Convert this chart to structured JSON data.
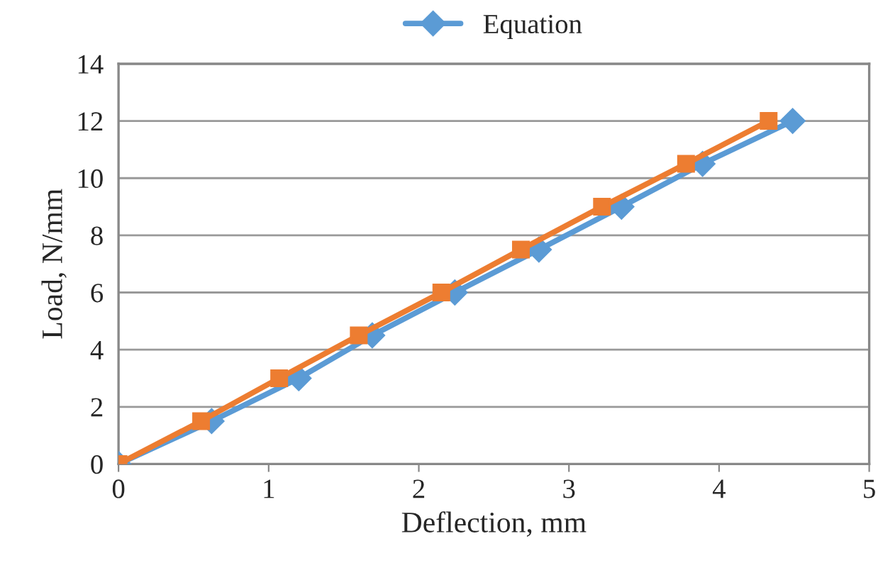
{
  "chart_data": {
    "type": "line",
    "xlabel": "Deflection, mm",
    "ylabel": "Load, N/mm",
    "xlim": [
      0,
      5
    ],
    "xticks": [
      0,
      1,
      2,
      3,
      4,
      5
    ],
    "ylim": [
      0,
      14
    ],
    "yticks": [
      0,
      2,
      4,
      6,
      8,
      10,
      12,
      14
    ],
    "grid": "y",
    "legend": "top",
    "series": [
      {
        "name": "Equation",
        "color": "#5b9bd5",
        "marker": "diamond",
        "x": [
          0,
          0.62,
          1.2,
          1.69,
          2.24,
          2.8,
          3.35,
          3.89,
          4.49
        ],
        "values": [
          0,
          1.5,
          3,
          4.5,
          6,
          7.5,
          9,
          10.5,
          12
        ]
      },
      {
        "color": "#ed7d31",
        "marker": "square",
        "x": [
          0,
          0.55,
          1.07,
          1.6,
          2.15,
          2.68,
          3.22,
          3.78,
          4.33
        ],
        "values": [
          0,
          1.5,
          3,
          4.5,
          6,
          7.5,
          9,
          10.5,
          12
        ]
      }
    ]
  }
}
